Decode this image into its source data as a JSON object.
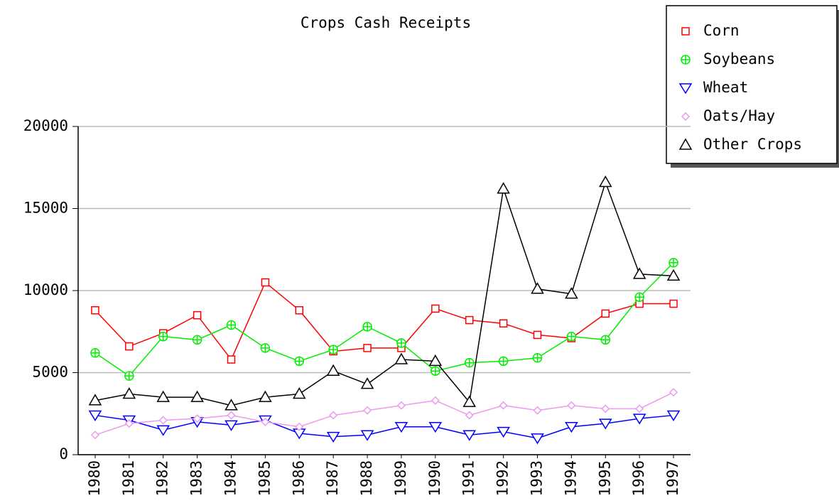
{
  "chart_data": {
    "type": "line",
    "title": "Crops Cash Receipts",
    "categories": [
      "1980",
      "1981",
      "1982",
      "1983",
      "1984",
      "1985",
      "1986",
      "1987",
      "1988",
      "1989",
      "1990",
      "1991",
      "1992",
      "1993",
      "1994",
      "1995",
      "1996",
      "1997"
    ],
    "ylim": [
      0,
      20000
    ],
    "yticks": [
      0,
      5000,
      10000,
      15000,
      20000
    ],
    "grid": true,
    "legend": "top-right",
    "series": [
      {
        "name": "Corn",
        "color": "#ff0000",
        "marker": "square",
        "values": [
          8800,
          6600,
          7400,
          8500,
          5800,
          10500,
          8800,
          6300,
          6500,
          6500,
          8900,
          8200,
          8000,
          7300,
          7100,
          8600,
          9200,
          9200
        ]
      },
      {
        "name": "Soybeans",
        "color": "#00ee00",
        "marker": "circle",
        "values": [
          6200,
          4800,
          7200,
          7000,
          7900,
          6500,
          5700,
          6400,
          7800,
          6800,
          5100,
          5600,
          5700,
          5900,
          7200,
          7000,
          9600,
          11700
        ]
      },
      {
        "name": "Wheat",
        "color": "#0000ff",
        "marker": "triangle-down",
        "values": [
          2400,
          2100,
          1500,
          2000,
          1800,
          2100,
          1300,
          1100,
          1200,
          1700,
          1700,
          1200,
          1400,
          1000,
          1700,
          1900,
          2200,
          2400
        ]
      },
      {
        "name": "Oats/Hay",
        "color": "#ee99ee",
        "marker": "diamond",
        "values": [
          1200,
          1900,
          2100,
          2200,
          2400,
          2000,
          1700,
          2400,
          2700,
          3000,
          3300,
          2400,
          3000,
          2700,
          3000,
          2800,
          2800,
          3800
        ]
      },
      {
        "name": "Other Crops",
        "color": "#000000",
        "marker": "triangle-up",
        "values": [
          3300,
          3700,
          3500,
          3500,
          3000,
          3500,
          3700,
          5100,
          4300,
          5800,
          5700,
          3200,
          16200,
          10100,
          9800,
          16600,
          11000,
          10900
        ]
      }
    ]
  }
}
